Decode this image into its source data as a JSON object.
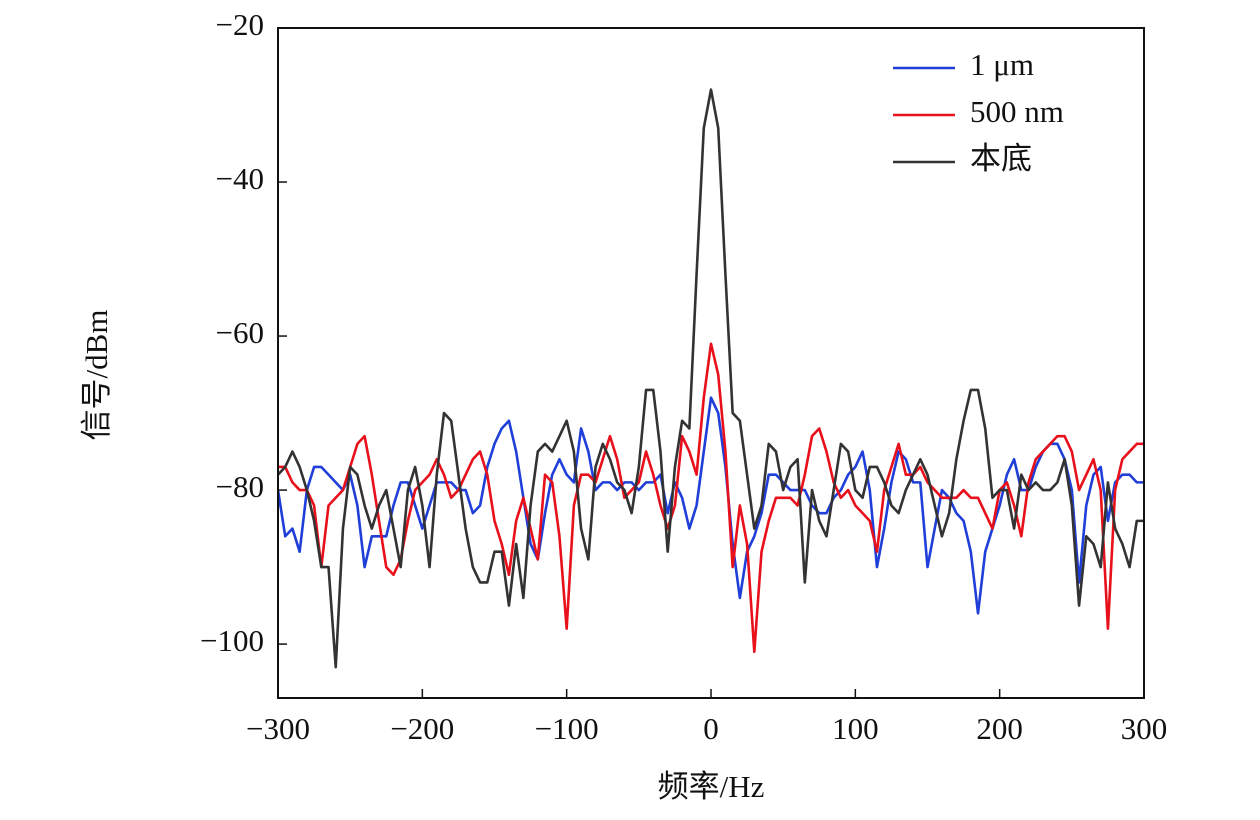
{
  "chart_data": {
    "type": "line",
    "x_label": "频率/Hz",
    "y_label": "信号/dBm",
    "xlim": [
      -300,
      300
    ],
    "ylim": [
      -107,
      -20
    ],
    "xticks": [
      {
        "value": -300,
        "label": "−300"
      },
      {
        "value": -200,
        "label": "−200"
      },
      {
        "value": -100,
        "label": "−100"
      },
      0,
      100,
      200,
      300
    ],
    "yticks": [
      {
        "value": -100,
        "label": "−100"
      },
      {
        "value": -80,
        "label": "−80"
      },
      {
        "value": -60,
        "label": "−60"
      },
      {
        "value": -40,
        "label": "−40"
      },
      {
        "value": -20,
        "label": "−20"
      }
    ],
    "legend": "upper right",
    "grid": false,
    "x": [
      -300,
      -295,
      -290,
      -285,
      -280,
      -275,
      -270,
      -265,
      -260,
      -255,
      -250,
      -245,
      -240,
      -235,
      -230,
      -225,
      -220,
      -215,
      -210,
      -205,
      -200,
      -195,
      -190,
      -185,
      -180,
      -175,
      -170,
      -165,
      -160,
      -155,
      -150,
      -145,
      -140,
      -135,
      -130,
      -125,
      -120,
      -115,
      -110,
      -105,
      -100,
      -95,
      -90,
      -85,
      -80,
      -75,
      -70,
      -65,
      -60,
      -55,
      -50,
      -45,
      -40,
      -35,
      -30,
      -25,
      -20,
      -15,
      -10,
      -5,
      0,
      5,
      10,
      15,
      20,
      25,
      30,
      35,
      40,
      45,
      50,
      55,
      60,
      65,
      70,
      75,
      80,
      85,
      90,
      95,
      100,
      105,
      110,
      115,
      120,
      125,
      130,
      135,
      140,
      145,
      150,
      155,
      160,
      165,
      170,
      175,
      180,
      185,
      190,
      195,
      200,
      205,
      210,
      215,
      220,
      225,
      230,
      235,
      240,
      245,
      250,
      255,
      260,
      265,
      270,
      275,
      280,
      285,
      290,
      295,
      300
    ],
    "series": [
      {
        "name": "1 μm",
        "color": "#1f3fd8",
        "values": [
          -80,
          -86,
          -85,
          -88,
          -80,
          -77,
          -77,
          -78,
          -79,
          -80,
          -78,
          -82,
          -90,
          -86,
          -86,
          -86,
          -82,
          -79,
          -79,
          -82,
          -85,
          -82,
          -79,
          -79,
          -79,
          -80,
          -80,
          -83,
          -82,
          -77,
          -74,
          -72,
          -71,
          -75,
          -81,
          -87,
          -89,
          -83,
          -78,
          -76,
          -78,
          -79,
          -72,
          -75,
          -80,
          -79,
          -79,
          -80,
          -79,
          -79,
          -80,
          -79,
          -79,
          -78,
          -83,
          -79,
          -81,
          -85,
          -82,
          -75,
          -68,
          -70,
          -77,
          -87,
          -94,
          -88,
          -86,
          -83,
          -78,
          -78,
          -79,
          -80,
          -80,
          -80,
          -82,
          -83,
          -83,
          -81,
          -80,
          -78,
          -77,
          -75,
          -80,
          -90,
          -85,
          -79,
          -75,
          -76,
          -79,
          -79,
          -90,
          -85,
          -80,
          -81,
          -83,
          -84,
          -88,
          -96,
          -88,
          -85,
          -82,
          -78,
          -76,
          -80,
          -80,
          -77,
          -75,
          -74,
          -74,
          -76,
          -80,
          -92,
          -82,
          -78,
          -77,
          -84,
          -79,
          -78,
          -78,
          -79,
          -79
        ]
      },
      {
        "name": "500 nm",
        "color": "#e8101a",
        "values": [
          -77,
          -77,
          -79,
          -80,
          -80,
          -82,
          -90,
          -82,
          -81,
          -80,
          -77,
          -74,
          -73,
          -78,
          -84,
          -90,
          -91,
          -89,
          -84,
          -80,
          -79,
          -78,
          -76,
          -78,
          -81,
          -80,
          -78,
          -76,
          -75,
          -78,
          -84,
          -87,
          -91,
          -84,
          -81,
          -85,
          -89,
          -78,
          -79,
          -86,
          -98,
          -82,
          -78,
          -78,
          -79,
          -76,
          -73,
          -76,
          -81,
          -80,
          -79,
          -75,
          -78,
          -82,
          -85,
          -82,
          -73,
          -75,
          -78,
          -68,
          -61,
          -65,
          -75,
          -90,
          -82,
          -87,
          -101,
          -88,
          -84,
          -81,
          -81,
          -81,
          -82,
          -78,
          -73,
          -72,
          -75,
          -79,
          -81,
          -80,
          -82,
          -83,
          -84,
          -88,
          -80,
          -77,
          -74,
          -78,
          -78,
          -77,
          -79,
          -80,
          -81,
          -81,
          -81,
          -80,
          -81,
          -81,
          -83,
          -85,
          -80,
          -79,
          -82,
          -86,
          -79,
          -76,
          -75,
          -74,
          -73,
          -73,
          -75,
          -80,
          -78,
          -76,
          -80,
          -98,
          -80,
          -76,
          -75,
          -74,
          -74
        ]
      },
      {
        "name": "本底",
        "color": "#333333",
        "values": [
          -78,
          -77,
          -75,
          -77,
          -80,
          -84,
          -90,
          -90,
          -103,
          -85,
          -77,
          -78,
          -82,
          -85,
          -82,
          -80,
          -85,
          -90,
          -80,
          -77,
          -82,
          -90,
          -78,
          -70,
          -71,
          -78,
          -85,
          -90,
          -92,
          -92,
          -88,
          -88,
          -95,
          -87,
          -94,
          -82,
          -75,
          -74,
          -75,
          -73,
          -71,
          -75,
          -85,
          -89,
          -77,
          -74,
          -76,
          -79,
          -80,
          -83,
          -77,
          -67,
          -67,
          -75,
          -88,
          -77,
          -71,
          -72,
          -52,
          -33,
          -28,
          -33,
          -52,
          -70,
          -71,
          -78,
          -85,
          -82,
          -74,
          -75,
          -80,
          -77,
          -76,
          -92,
          -80,
          -84,
          -86,
          -80,
          -74,
          -75,
          -80,
          -81,
          -77,
          -77,
          -79,
          -82,
          -83,
          -80,
          -78,
          -76,
          -78,
          -82,
          -86,
          -83,
          -76,
          -71,
          -67,
          -67,
          -72,
          -81,
          -80,
          -80,
          -85,
          -78,
          -80,
          -79,
          -80,
          -80,
          -79,
          -76,
          -82,
          -95,
          -86,
          -87,
          -90,
          -79,
          -85,
          -87,
          -90,
          -84,
          -84
        ]
      }
    ]
  }
}
